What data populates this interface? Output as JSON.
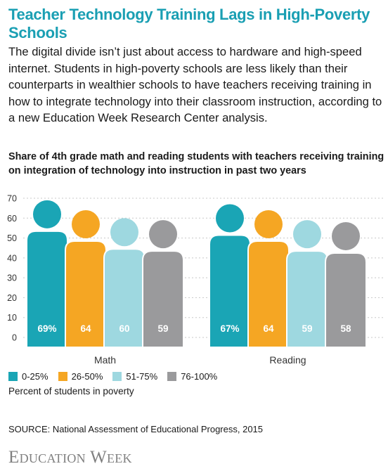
{
  "header": {
    "title": "Teacher Technology Training Lags in High-Poverty Schools",
    "intro": "The digital divide isn’t just about access to hardware and high-speed internet. Students in high-poverty schools are less likely than their counterparts in wealthier schools to have teachers receiving training in how to integrate technology into their classroom instruction, according to a new Education Week Research Center analysis.",
    "subtitle": "Share of 4th grade math and reading students with teachers receiving training on integration of technology into instruction in past two years"
  },
  "chart_data": {
    "type": "bar",
    "categories": [
      "Math",
      "Reading"
    ],
    "series": [
      {
        "name": "0-25%",
        "color": "#1aa5b5",
        "values": [
          69,
          67
        ],
        "labels": [
          "69%",
          "67%"
        ]
      },
      {
        "name": "26-50%",
        "color": "#f5a623",
        "values": [
          64,
          64
        ],
        "labels": [
          "64",
          "64"
        ]
      },
      {
        "name": "51-75%",
        "color": "#9ed8e0",
        "values": [
          60,
          59
        ],
        "labels": [
          "60",
          "59"
        ]
      },
      {
        "name": "76-100%",
        "color": "#9a9a9c",
        "values": [
          59,
          58
        ],
        "labels": [
          "59",
          "58"
        ]
      }
    ],
    "yticks": [
      0,
      10,
      20,
      30,
      40,
      50,
      60,
      70
    ],
    "ylim": [
      0,
      70
    ],
    "grid": true,
    "legend": "bottom-left"
  },
  "legend": {
    "title": "Percent of students in poverty"
  },
  "footer": {
    "source": "SOURCE: National Assessment of Educational Progress, 2015",
    "logo": "Education Week"
  }
}
